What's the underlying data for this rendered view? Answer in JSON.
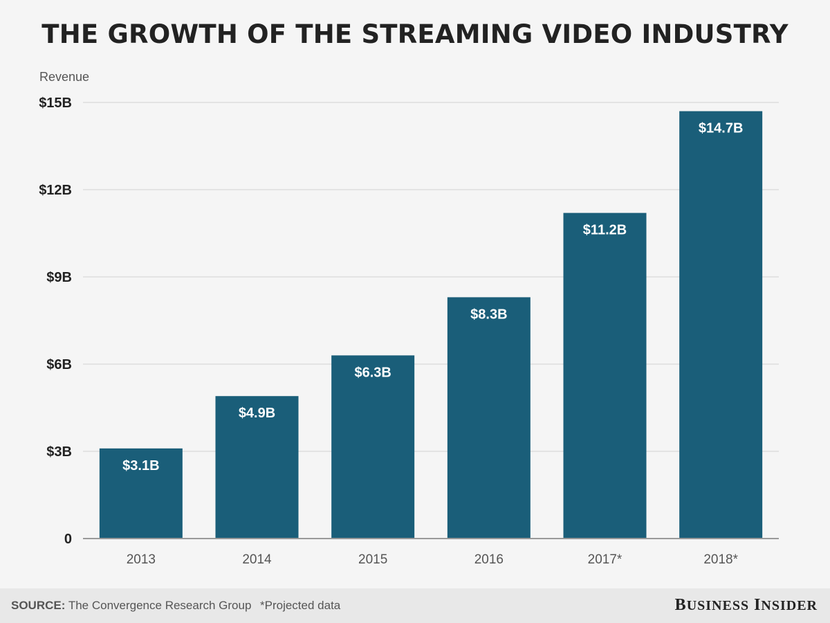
{
  "chart_data": {
    "type": "bar",
    "title": "THE GROWTH OF THE STREAMING VIDEO INDUSTRY",
    "ylabel": "Revenue",
    "xlabel": "",
    "categories": [
      "2013",
      "2014",
      "2015",
      "2016",
      "2017*",
      "2018*"
    ],
    "values": [
      3.1,
      4.9,
      6.3,
      8.3,
      11.2,
      14.7
    ],
    "data_labels": [
      "$3.1B",
      "$4.9B",
      "$6.3B",
      "$8.3B",
      "$11.2B",
      "$14.7B"
    ],
    "y_ticks": [
      0,
      3,
      6,
      9,
      12,
      15
    ],
    "y_tick_labels": [
      "0",
      "$3B",
      "$6B",
      "$9B",
      "$12B",
      "$15B"
    ],
    "ylim": [
      0,
      15
    ],
    "grid": true,
    "legend": "none",
    "colors": {
      "bar": "#1a5e79",
      "grid": "#dddddd",
      "axis": "#999999",
      "background": "#f5f5f5"
    }
  },
  "footer": {
    "source_label": "SOURCE:",
    "source_text": "The Convergence Research Group",
    "note": "*Projected data",
    "brand_first": "B",
    "brand_first_rest": "USINESS",
    "brand_second": "I",
    "brand_second_rest": "NSIDER"
  }
}
